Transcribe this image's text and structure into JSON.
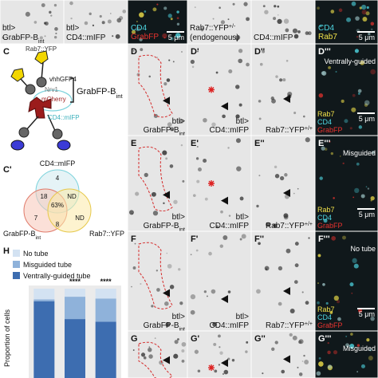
{
  "top_row": [
    {
      "pre": "btl>",
      "name": "GrabFP-B",
      "sub": "int"
    },
    {
      "pre": "btl>",
      "name": "CD4::mIFP"
    },
    {
      "channels": [
        {
          "name": "CD4",
          "color": "#4fd8e4"
        },
        {
          "name": "GrabFP",
          "color": "#e8322e"
        }
      ],
      "scale": "5 μm"
    },
    {
      "pre": "Rab7::YFP",
      "pre_sup": "+/-",
      "name": "(endogenous)"
    },
    {
      "name": "CD4::mIFP"
    },
    {
      "channels": [
        {
          "name": "CD4",
          "color": "#4fd8e4"
        },
        {
          "name": "Rab7",
          "color": "#f2e24a"
        }
      ],
      "scale": "5 μm"
    }
  ],
  "panel_c": {
    "label": "C",
    "rab7": "Rab7::YFP",
    "vhh": "vhhGFP4",
    "nrv1": "Nrv1",
    "mcherry": "mCherry",
    "grab": "GrabFP-B",
    "grab_sub": "int",
    "cd4": "CD4::mIFP"
  },
  "panel_c2": {
    "label": "C'",
    "cd4": "CD4::mIFP",
    "grab": "GrabFP-B",
    "grab_sub": "int",
    "rab": "Rab7::YFP",
    "regions": {
      "cd4_only": "4",
      "cd4_grab": "18",
      "cd4_rab": "ND",
      "all": "63%",
      "grab_only": "7",
      "grab_rab": "8",
      "rab_only": "ND"
    }
  },
  "rows": [
    {
      "labels": [
        "D",
        "D'",
        "D''",
        "D'''"
      ],
      "category": "Ventrally-guided",
      "captions": [
        {
          "pre": "btl>",
          "name": "GrabFP-B",
          "sub": "int"
        },
        {
          "pre": "btl>",
          "name": "CD4::mIFP"
        },
        {
          "name": "Rab7::YFP",
          "sup": "+/+"
        }
      ],
      "channels": [
        {
          "name": "Rab7",
          "color": "#f2e24a"
        },
        {
          "name": "CD4",
          "color": "#4fd8e4"
        },
        {
          "name": "GrabFP",
          "color": "#e8322e"
        }
      ],
      "scale": "5 μm"
    },
    {
      "labels": [
        "E",
        "E'",
        "E''",
        "E'''"
      ],
      "category": "Misguided",
      "captions": [
        {
          "pre": "btl>",
          "name": "GrabFP-B",
          "sub": "int"
        },
        {
          "pre": "btl>",
          "name": "CD4::mIFP"
        },
        {
          "name": "Rab7::YFP",
          "sup": "+/+"
        }
      ],
      "channels": [
        {
          "name": "Rab7",
          "color": "#f2e24a"
        },
        {
          "name": "CD4",
          "color": "#4fd8e4"
        },
        {
          "name": "GrabFP",
          "color": "#e8322e"
        }
      ],
      "scale": "5 μm"
    },
    {
      "labels": [
        "F",
        "F'",
        "F''",
        "F'''"
      ],
      "category": "No tube",
      "captions": [
        {
          "pre": "btl>",
          "name": "GrabFP-B",
          "sub": "int"
        },
        {
          "pre": "btl>",
          "name": "CD4::mIFP"
        },
        {
          "name": "Rab7::YFP",
          "sup": "+/+"
        }
      ],
      "channels": [
        {
          "name": "Rab7",
          "color": "#f2e24a"
        },
        {
          "name": "CD4",
          "color": "#4fd8e4"
        },
        {
          "name": "GrabFP",
          "color": "#e8322e"
        }
      ],
      "scale": "5 μm"
    },
    {
      "labels": [
        "G",
        "G'",
        "G''",
        "G'''"
      ],
      "category": "Misguided"
    }
  ],
  "chart_data": {
    "type": "bar",
    "panel_label": "H",
    "ylabel": "Proportion of cells",
    "categories": [
      null,
      null,
      null
    ],
    "series": [
      {
        "name": "No tube",
        "color": "#d3e2f2",
        "values": [
          0.12,
          0.09,
          0.11
        ]
      },
      {
        "name": "Misguided tube",
        "color": "#8fb2da",
        "values": [
          0.02,
          0.25,
          0.26
        ]
      },
      {
        "name": "Ventrally-guided tube",
        "color": "#3d6db0",
        "values": [
          0.86,
          0.66,
          0.63
        ]
      }
    ],
    "stack_order": [
      "Ventrally-guided tube",
      "Misguided tube",
      "No tube"
    ],
    "significance": [
      null,
      "****",
      "****"
    ],
    "ylim": [
      0,
      1
    ]
  }
}
